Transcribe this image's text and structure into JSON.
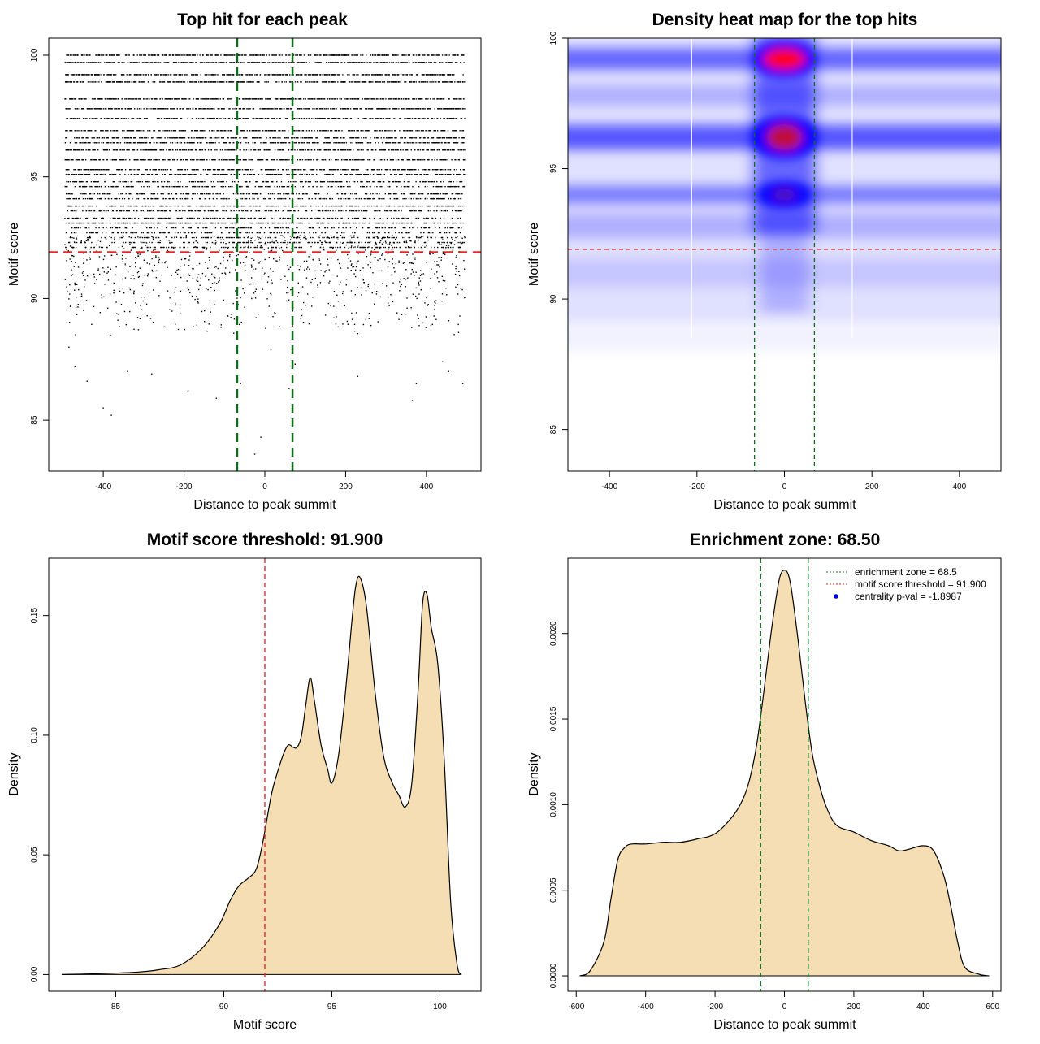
{
  "colors": {
    "threshold": "#e8262a",
    "zone": "#0c6e1a",
    "fill": "#f5deb3",
    "heat_low": "#ffffff",
    "heat_mid": "#0000ff",
    "heat_high": "#ff0000",
    "legend_dot": "#0000ff"
  },
  "chart_data": [
    {
      "type": "scatter",
      "title": "Top hit for each peak",
      "xlabel": "Distance to peak summit",
      "ylabel": "Motif score",
      "xlim": [
        -535,
        535
      ],
      "ylim": [
        82.9,
        100.7
      ],
      "xticks": [
        -400,
        -200,
        0,
        200,
        400
      ],
      "yticks": [
        85,
        90,
        95,
        100
      ],
      "grid": false,
      "threshold_y": 91.9,
      "zone_x": [
        -68.5,
        68.5
      ],
      "points_description": "dense points across x in [-495, 495]; score levels mostly 88-100",
      "discrete_levels": [
        100.0,
        99.7,
        99.2,
        98.9,
        98.2,
        97.8,
        97.4,
        96.9,
        96.6,
        96.4,
        96.1,
        95.7,
        95.3,
        95.1,
        94.8,
        94.6,
        94.3,
        94.1,
        93.8,
        93.6,
        93.3,
        93.1,
        92.9,
        92.7,
        92.5,
        92.3,
        92.1
      ],
      "sparse_points": [
        {
          "x": -490,
          "y": 89.0
        },
        {
          "x": -485,
          "y": 88.0
        },
        {
          "x": -470,
          "y": 87.2
        },
        {
          "x": -440,
          "y": 86.6
        },
        {
          "x": -400,
          "y": 85.5
        },
        {
          "x": -380,
          "y": 85.2
        },
        {
          "x": -340,
          "y": 87.0
        },
        {
          "x": -280,
          "y": 86.9
        },
        {
          "x": -190,
          "y": 86.2
        },
        {
          "x": -120,
          "y": 85.9
        },
        {
          "x": -60,
          "y": 86.5
        },
        {
          "x": -25,
          "y": 83.6
        },
        {
          "x": -10,
          "y": 84.3
        },
        {
          "x": 15,
          "y": 87.9
        },
        {
          "x": 60,
          "y": 86.3
        },
        {
          "x": 75,
          "y": 87.3
        },
        {
          "x": 230,
          "y": 86.8
        },
        {
          "x": 365,
          "y": 85.8
        },
        {
          "x": 375,
          "y": 86.5
        },
        {
          "x": 440,
          "y": 87.4
        },
        {
          "x": 490,
          "y": 86.5
        },
        {
          "x": 455,
          "y": 87.0
        }
      ]
    },
    {
      "type": "heatmap",
      "title": "Density heat map for the top hits",
      "xlabel": "Distance to peak summit",
      "ylabel": "Motif score",
      "xlim": [
        -495,
        495
      ],
      "ylim": [
        83.4,
        100.0
      ],
      "xticks": [
        -400,
        -200,
        0,
        200,
        400
      ],
      "yticks": [
        85,
        90,
        95,
        100
      ],
      "threshold_y": 91.9,
      "zone_x": [
        -68.5,
        68.5
      ],
      "grid_vertical": [
        -212,
        155
      ],
      "hotspots": [
        {
          "x": 0,
          "y": 99.2,
          "level": "high"
        },
        {
          "x": 0,
          "y": 96.2,
          "level": "high"
        },
        {
          "x": 0,
          "y": 94.0,
          "level": "mid"
        }
      ]
    },
    {
      "type": "area",
      "title": "Motif score threshold: 91.900",
      "xlabel": "Motif score",
      "ylabel": "Density",
      "xlim": [
        81.9,
        101.9
      ],
      "ylim": [
        -0.007,
        0.174
      ],
      "xticks": [
        85,
        90,
        95,
        100
      ],
      "yticks": [
        0.0,
        0.05,
        0.1,
        0.15
      ],
      "ytick_labels": [
        "0.00",
        "0.05",
        "0.10",
        "0.15"
      ],
      "threshold_x": 91.9,
      "x": [
        82.5,
        84.0,
        86.0,
        87.0,
        88.0,
        89.0,
        89.8,
        90.3,
        90.7,
        91.1,
        91.5,
        91.8,
        92.2,
        92.5,
        92.8,
        93.0,
        93.2,
        93.4,
        93.6,
        93.8,
        94.0,
        94.2,
        94.5,
        94.8,
        95.0,
        95.3,
        95.6,
        95.9,
        96.1,
        96.3,
        96.6,
        97.0,
        97.4,
        97.8,
        98.1,
        98.4,
        98.7,
        99.0,
        99.2,
        99.4,
        99.6,
        99.9,
        100.2,
        100.5,
        100.8,
        101.0
      ],
      "y": [
        0.0,
        0.0003,
        0.001,
        0.002,
        0.004,
        0.011,
        0.021,
        0.031,
        0.037,
        0.04,
        0.044,
        0.055,
        0.075,
        0.085,
        0.093,
        0.096,
        0.095,
        0.095,
        0.1,
        0.113,
        0.124,
        0.114,
        0.096,
        0.086,
        0.08,
        0.091,
        0.115,
        0.145,
        0.162,
        0.166,
        0.154,
        0.118,
        0.091,
        0.08,
        0.075,
        0.07,
        0.08,
        0.12,
        0.155,
        0.159,
        0.145,
        0.13,
        0.09,
        0.03,
        0.004,
        0.0
      ],
      "grid": false
    },
    {
      "type": "area",
      "title": "Enrichment zone: 68.50",
      "xlabel": "Distance to peak summit",
      "ylabel": "Density",
      "xlim": [
        -624,
        624
      ],
      "ylim": [
        -9e-05,
        0.00244
      ],
      "xticks": [
        -600,
        -400,
        -200,
        0,
        200,
        400,
        600
      ],
      "yticks": [
        0.0,
        0.0005,
        0.001,
        0.0015,
        0.002
      ],
      "ytick_labels": [
        "0.0000",
        "0.0005",
        "0.0010",
        "0.0015",
        "0.0020"
      ],
      "zone_x": [
        -68.5,
        68.5
      ],
      "x": [
        -590,
        -560,
        -520,
        -500,
        -480,
        -460,
        -440,
        -400,
        -350,
        -300,
        -250,
        -200,
        -150,
        -120,
        -100,
        -80,
        -60,
        -40,
        -20,
        -10,
        0,
        10,
        20,
        40,
        60,
        80,
        100,
        120,
        150,
        200,
        250,
        300,
        330,
        360,
        400,
        430,
        460,
        480,
        500,
        520,
        560,
        590
      ],
      "y": [
        0.0,
        3e-05,
        0.0002,
        0.00045,
        0.00068,
        0.00075,
        0.00077,
        0.00077,
        0.00078,
        0.00078,
        0.0008,
        0.00083,
        0.00093,
        0.00103,
        0.00115,
        0.00135,
        0.00165,
        0.00198,
        0.00226,
        0.00235,
        0.00237,
        0.00235,
        0.00226,
        0.00195,
        0.0016,
        0.0013,
        0.00112,
        0.00099,
        0.00088,
        0.00084,
        0.00079,
        0.00076,
        0.00073,
        0.00074,
        0.00076,
        0.00073,
        0.00058,
        0.0004,
        0.00019,
        5e-05,
        1e-05,
        0.0
      ],
      "legend": {
        "position": "top-right",
        "entries": [
          "enrichment zone = 68.5",
          "motif score threshold = 91.900",
          "centrality p-val = -1.8987"
        ]
      },
      "grid": false
    }
  ]
}
